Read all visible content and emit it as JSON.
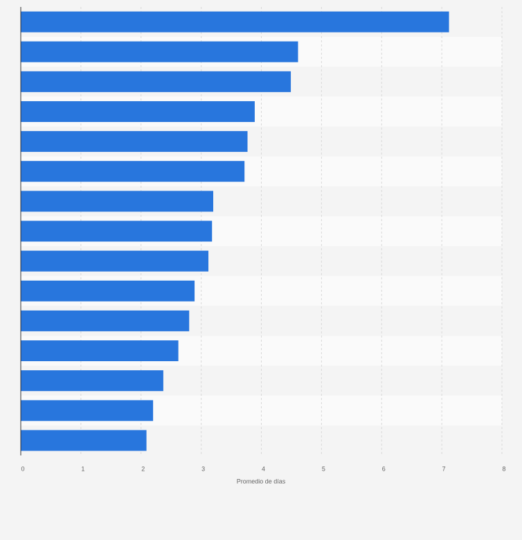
{
  "chart_data": {
    "type": "barh",
    "categories": [
      null,
      null,
      null,
      null,
      null,
      null,
      null,
      null,
      null,
      null,
      null,
      null,
      null,
      null,
      null
    ],
    "values": [
      7.12,
      4.61,
      4.49,
      3.89,
      3.77,
      3.72,
      3.2,
      3.18,
      3.12,
      2.89,
      2.8,
      2.62,
      2.37,
      2.2,
      2.09
    ],
    "color": "#2876dd",
    "xlabel": "Promedio de días",
    "xlim": [
      0,
      8
    ],
    "xticks": [
      0,
      1,
      2,
      3,
      4,
      5,
      6,
      7,
      8
    ],
    "grid": true
  }
}
